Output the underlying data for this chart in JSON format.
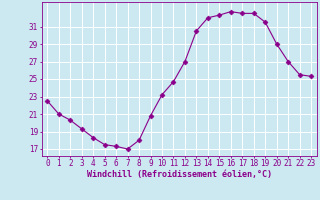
{
  "x": [
    0,
    1,
    2,
    3,
    4,
    5,
    6,
    7,
    8,
    9,
    10,
    11,
    12,
    13,
    14,
    15,
    16,
    17,
    18,
    19,
    20,
    21,
    22,
    23
  ],
  "y": [
    22.5,
    21.0,
    20.3,
    19.3,
    18.3,
    17.5,
    17.3,
    17.0,
    18.0,
    20.8,
    23.2,
    24.7,
    27.0,
    30.5,
    32.0,
    32.3,
    32.7,
    32.5,
    32.5,
    31.5,
    29.0,
    27.0,
    25.5,
    25.3
  ],
  "line_color": "#8b008b",
  "marker": "D",
  "marker_size": 2.5,
  "bg_color": "#cce8f0",
  "grid_color": "#ffffff",
  "xlabel": "Windchill (Refroidissement éolien,°C)",
  "yticks": [
    17,
    19,
    21,
    23,
    25,
    27,
    29,
    31
  ],
  "xticks": [
    0,
    1,
    2,
    3,
    4,
    5,
    6,
    7,
    8,
    9,
    10,
    11,
    12,
    13,
    14,
    15,
    16,
    17,
    18,
    19,
    20,
    21,
    22,
    23
  ],
  "ylim": [
    16.2,
    33.8
  ],
  "xlim": [
    -0.5,
    23.5
  ],
  "tick_color": "#8b008b",
  "label_color": "#8b008b",
  "spine_color": "#8b008b",
  "tick_fontsize": 5.5,
  "xlabel_fontsize": 6.0
}
